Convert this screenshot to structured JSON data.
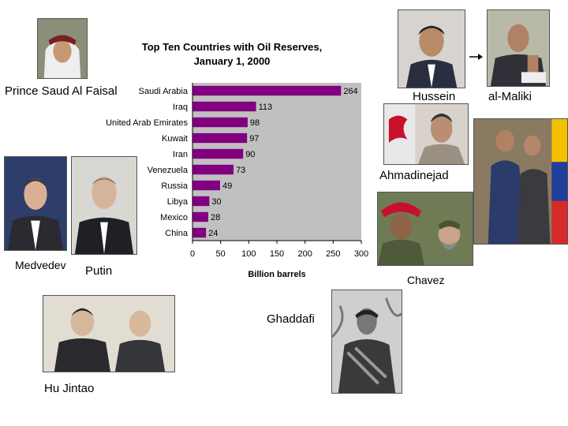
{
  "captions": {
    "saud": "Prince Saud Al Faisal",
    "hussein": "Hussein",
    "maliki": "al-Maliki",
    "ahmadinejad": "Ahmadinejad",
    "medvedev": "Medvedev",
    "putin": "Putin",
    "chavez": "Chavez",
    "ghaddafi": "Ghaddafi",
    "hu": "Hu Jintao"
  },
  "chart_data": {
    "type": "bar",
    "orientation": "horizontal",
    "title": "Top Ten Countries with Oil Reserves,",
    "subtitle": "January 1, 2000",
    "xlabel": "Billion barrels",
    "ylabel": "",
    "categories": [
      "Saudi Arabia",
      "Iraq",
      "United Arab Emirates",
      "Kuwait",
      "Iran",
      "Venezuela",
      "Russia",
      "Libya",
      "Mexico",
      "China"
    ],
    "values": [
      264,
      113,
      98,
      97,
      90,
      73,
      49,
      30,
      28,
      24
    ],
    "xlim": [
      0,
      300
    ],
    "xticks": [
      0,
      50,
      100,
      150,
      200,
      250,
      300
    ],
    "grid": false,
    "legend": "none",
    "bar_color": "#800080",
    "plot_background": "#c0c0c0"
  }
}
